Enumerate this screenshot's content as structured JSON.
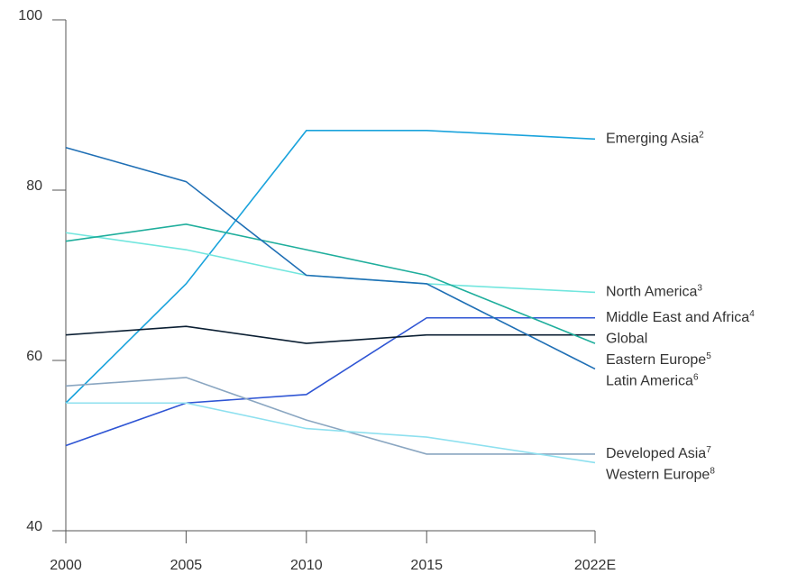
{
  "chart_data": {
    "type": "line",
    "x": [
      2000,
      2005,
      2010,
      2015,
      2022
    ],
    "xlim": [
      2000,
      2022
    ],
    "xticks": [
      2000,
      2005,
      2010,
      2015,
      {
        "value": 2022,
        "label": "2022E"
      }
    ],
    "ylim": [
      40,
      100
    ],
    "yticks": [
      40,
      60,
      80,
      100
    ],
    "series": [
      {
        "name": "Emerging Asia",
        "footnote": "2",
        "color": "#1aa3dc",
        "values": [
          55,
          69,
          87,
          87,
          86
        ]
      },
      {
        "name": "North America",
        "footnote": "3",
        "color": "#72e6de",
        "values": [
          75,
          73,
          70,
          69,
          68
        ]
      },
      {
        "name": "Middle East and Africa",
        "footnote": "4",
        "color": "#2f55d4",
        "values": [
          50,
          55,
          56,
          65,
          65
        ]
      },
      {
        "name": "Global",
        "color": "#0b1f33",
        "values": [
          63,
          64,
          62,
          63,
          63
        ]
      },
      {
        "name": "Eastern Europe",
        "footnote": "5",
        "color": "#1fae9c",
        "values": [
          74,
          76,
          73,
          70,
          62
        ]
      },
      {
        "name": "Latin America",
        "footnote": "6",
        "color": "#1f6fb5",
        "values": [
          85,
          81,
          70,
          69,
          59
        ]
      },
      {
        "name": "Developed Asia",
        "footnote": "7",
        "color": "#8aa6c1",
        "values": [
          57,
          58,
          53,
          49,
          49
        ]
      },
      {
        "name": "Western Europe",
        "footnote": "8",
        "color": "#8ee0ef",
        "values": [
          55,
          55,
          52,
          51,
          48
        ]
      }
    ]
  }
}
